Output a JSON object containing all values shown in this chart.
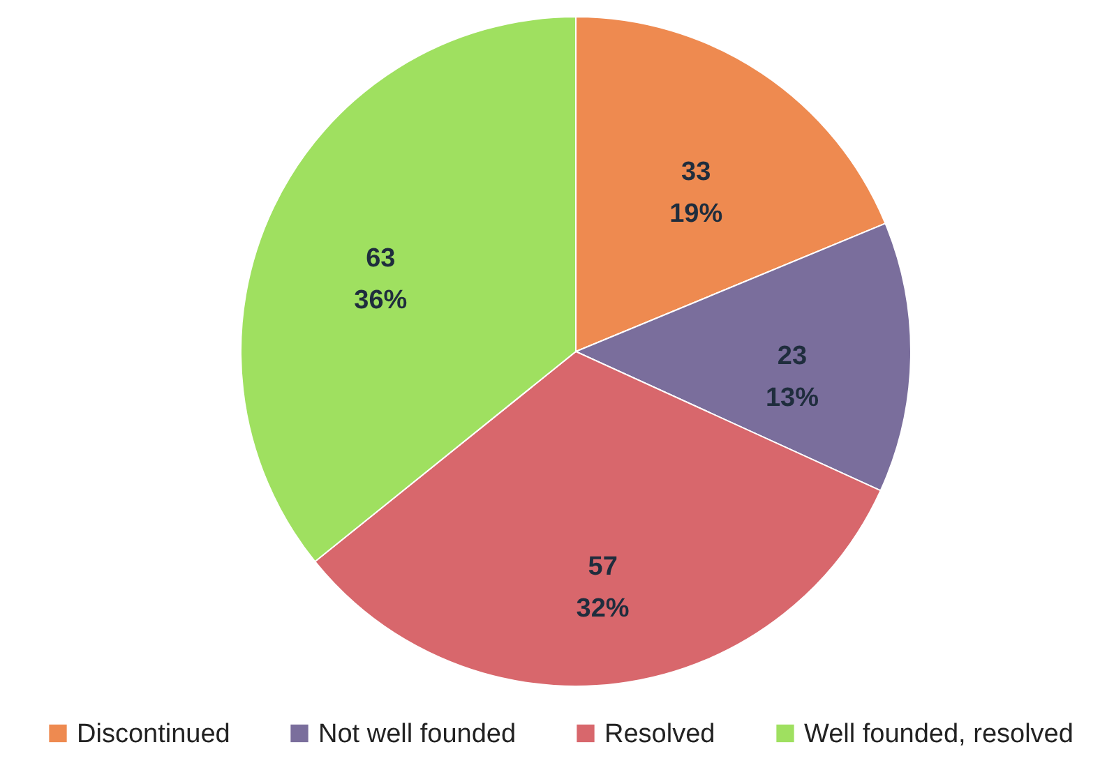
{
  "chart_data": {
    "type": "pie",
    "categories": [
      "Discontinued",
      "Not well founded",
      "Resolved",
      "Well founded, resolved"
    ],
    "values": [
      33,
      23,
      57,
      63
    ],
    "colors": [
      "#ee8a50",
      "#7a6e9c",
      "#d8676c",
      "#9fe060"
    ],
    "value_labels": [
      "33\n19%",
      "23\n13%",
      "57\n32%",
      "63\n36%"
    ],
    "legend": "bottom"
  }
}
